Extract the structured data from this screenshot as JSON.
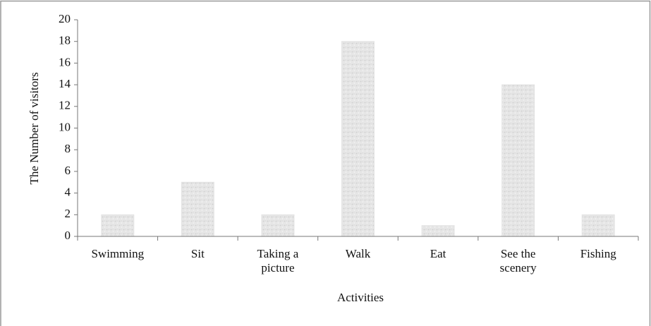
{
  "chart_data": {
    "type": "bar",
    "x_label": "Activities",
    "y_label": "The Number of visitors",
    "categories": [
      "Swimming",
      "Sit",
      "Taking a picture",
      "Walk",
      "Eat",
      "See the scenery",
      "Fishing"
    ],
    "values": [
      2,
      5,
      2,
      18,
      1,
      14,
      2
    ],
    "color": "#e4e4e4",
    "ylim": [
      0,
      20
    ],
    "yticks": [
      0,
      2,
      4,
      6,
      8,
      10,
      12,
      14,
      16,
      18,
      20
    ],
    "grid": false
  }
}
